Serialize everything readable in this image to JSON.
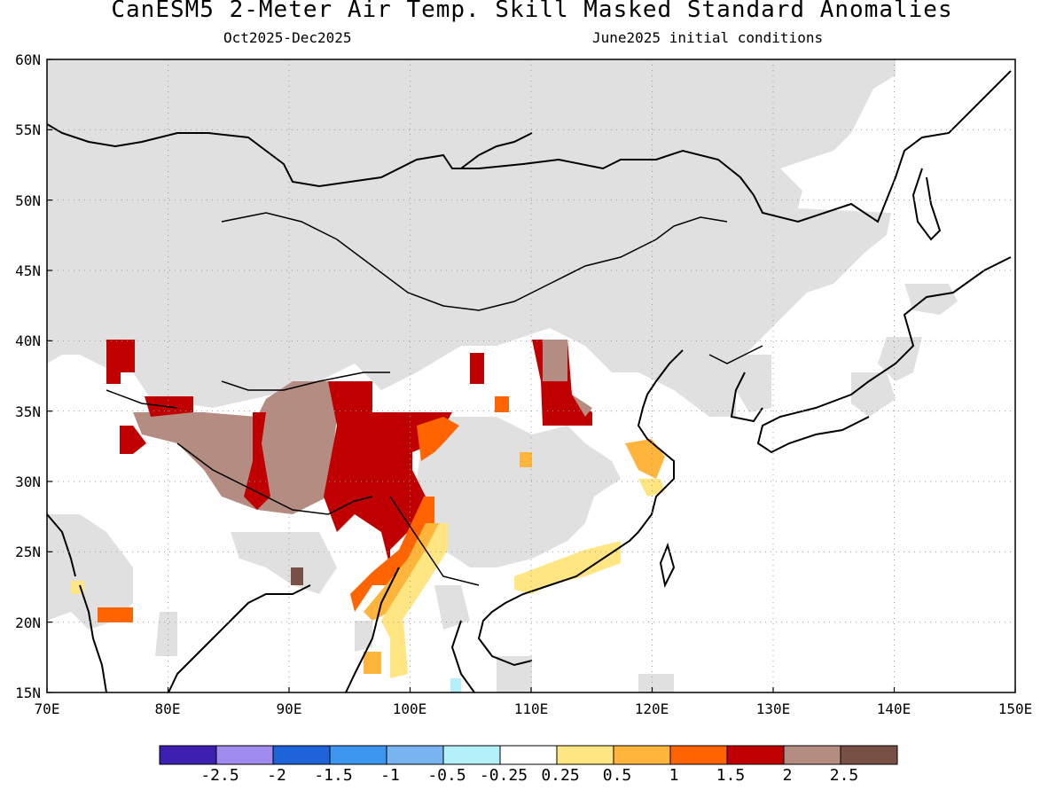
{
  "header": {
    "title": "CanESM5 2-Meter Air Temp. Skill Masked Standard Anomalies",
    "subtitle_period": "Oct2025-Dec2025",
    "subtitle_init": "June2025 initial conditions"
  },
  "map": {
    "lat_labels": [
      "60N",
      "55N",
      "50N",
      "45N",
      "40N",
      "35N",
      "30N",
      "25N",
      "20N",
      "15N"
    ],
    "lon_labels": [
      "70E",
      "80E",
      "90E",
      "100E",
      "110E",
      "120E",
      "130E",
      "140E",
      "150E"
    ],
    "mask_color": "#e0e0e0",
    "grid_style": "dotted"
  },
  "legend": {
    "colors": [
      "#3c1fb0",
      "#a08cf0",
      "#1e64d8",
      "#3c96f0",
      "#78b4f0",
      "#b4f0fa",
      "#ffffff",
      "#ffe682",
      "#ffb43c",
      "#ff6400",
      "#c00000",
      "#b48c82",
      "#785046"
    ],
    "labels": [
      "-2.5",
      "-2",
      "-1.5",
      "-1",
      "-0.5",
      "-0.25",
      "0.25",
      "0.5",
      "1",
      "1.5",
      "2",
      "2.5"
    ]
  }
}
